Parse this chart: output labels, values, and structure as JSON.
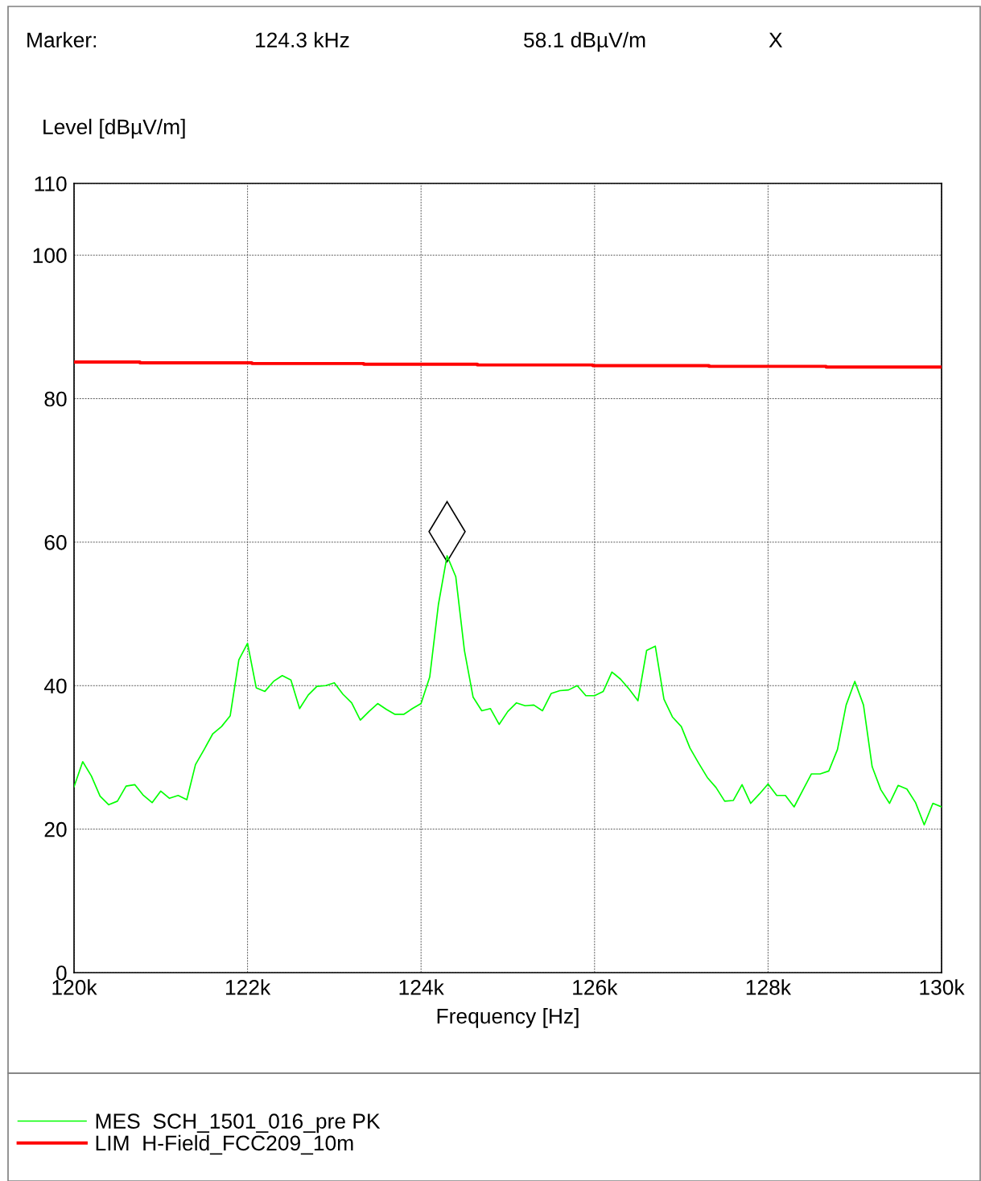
{
  "chart_data": {
    "type": "line",
    "xlabel": "Frequency [Hz]",
    "ylabel": "Level [dBµV/m]",
    "annotations": [
      "Marker:",
      "124.3 kHz",
      "58.1 dBµV/m",
      "X"
    ],
    "xlim": [
      120000,
      130000
    ],
    "xticks": [
      {
        "value": 120000,
        "label": "120k"
      },
      {
        "value": 122000,
        "label": "122k"
      },
      {
        "value": 124000,
        "label": "124k"
      },
      {
        "value": 126000,
        "label": "126k"
      },
      {
        "value": 128000,
        "label": "128k"
      },
      {
        "value": 130000,
        "label": "130k"
      }
    ],
    "ylim": [
      0,
      110
    ],
    "yticks": [
      0,
      20,
      40,
      60,
      80,
      100,
      110
    ],
    "grid": true,
    "legend": "bottom",
    "series": [
      {
        "name": "MES  SCH_1501_016_pre PK",
        "color": "#00ff00",
        "x": [
          120000,
          120100,
          120200,
          120300,
          120400,
          120500,
          120600,
          120700,
          120800,
          120900,
          121000,
          121100,
          121200,
          121300,
          121400,
          121500,
          121600,
          121700,
          121800,
          121900,
          122000,
          122100,
          122200,
          122300,
          122400,
          122500,
          122600,
          122700,
          122800,
          122900,
          123000,
          123100,
          123200,
          123300,
          123400,
          123500,
          123600,
          123700,
          123800,
          123900,
          124000,
          124100,
          124200,
          124300,
          124400,
          124500,
          124600,
          124700,
          124800,
          124900,
          125000,
          125100,
          125200,
          125300,
          125400,
          125500,
          125600,
          125700,
          125800,
          125900,
          126000,
          126100,
          126200,
          126300,
          126400,
          126500,
          126600,
          126700,
          126800,
          126900,
          127000,
          127100,
          127200,
          127300,
          127400,
          127500,
          127600,
          127700,
          127800,
          127900,
          128000,
          128100,
          128200,
          128300,
          128400,
          128500,
          128600,
          128700,
          128800,
          128900,
          129000,
          129100,
          129200,
          129300,
          129400,
          129500,
          129600,
          129700,
          129800,
          129900,
          130000
        ],
        "values": [
          25.9,
          29.4,
          27.4,
          24.6,
          23.4,
          23.9,
          26.0,
          26.2,
          24.7,
          23.7,
          25.3,
          24.3,
          24.7,
          24.1,
          29.0,
          31.1,
          33.3,
          34.3,
          35.8,
          43.6,
          45.9,
          39.7,
          39.2,
          40.6,
          41.4,
          40.8,
          36.8,
          38.7,
          39.9,
          40.0,
          40.4,
          38.8,
          37.6,
          35.2,
          36.4,
          37.5,
          36.7,
          36.0,
          36.0,
          36.8,
          37.5,
          41.2,
          51.3,
          58.1,
          55.2,
          44.9,
          38.4,
          36.5,
          36.8,
          34.6,
          36.4,
          37.6,
          37.2,
          37.3,
          36.5,
          38.9,
          39.3,
          39.4,
          40.0,
          38.6,
          38.6,
          39.2,
          41.9,
          40.9,
          39.5,
          37.9,
          44.9,
          45.5,
          38.1,
          35.6,
          34.3,
          31.3,
          29.2,
          27.2,
          25.8,
          23.9,
          24.0,
          26.2,
          23.6,
          24.9,
          26.3,
          24.7,
          24.7,
          23.1,
          25.4,
          27.7,
          27.7,
          28.1,
          31.1,
          37.3,
          40.6,
          37.3,
          28.7,
          25.5,
          23.6,
          26.1,
          25.6,
          23.7,
          20.6,
          23.6,
          23.1
        ]
      },
      {
        "name": "LIM  H-Field_FCC209_10m",
        "color": "#ff0000",
        "type": "step",
        "x": [
          120000,
          120760,
          122050,
          123340,
          124650,
          125980,
          127320,
          128670,
          130000
        ],
        "values": [
          85.1,
          85.0,
          84.9,
          84.8,
          84.7,
          84.6,
          84.5,
          84.4,
          84.4
        ]
      }
    ]
  }
}
